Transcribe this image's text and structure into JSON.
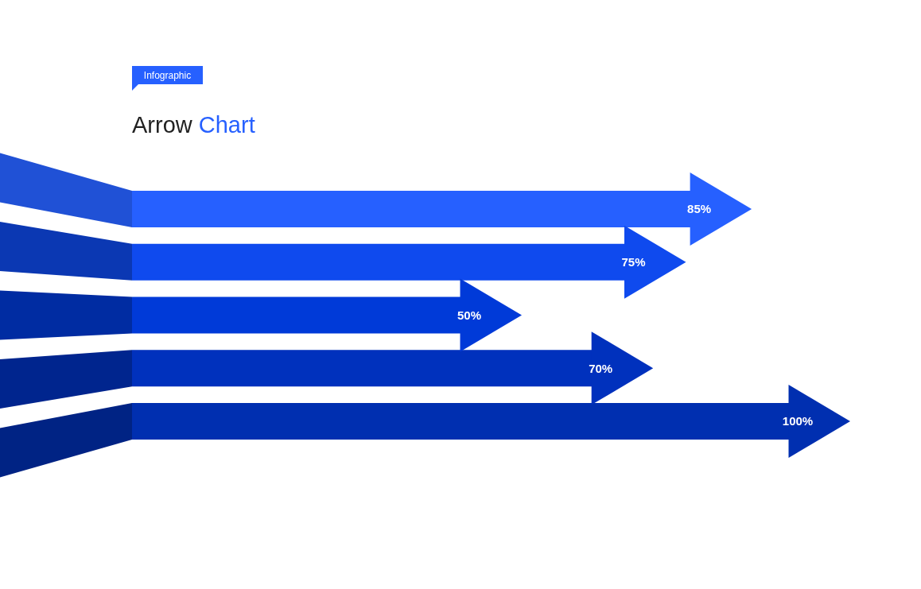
{
  "chart_data": {
    "type": "bar",
    "orientation": "horizontal",
    "title": "Arrow Chart",
    "subtitle": "Infographic",
    "categories": [
      null,
      null,
      null,
      null,
      null
    ],
    "values": [
      85,
      75,
      50,
      70,
      100
    ],
    "colors": [
      "#2660ff",
      "#0f4aee",
      "#003ad8",
      "#0031bd",
      "#002fb0"
    ],
    "value_labels": [
      "85%",
      "75%",
      "50%",
      "70%",
      "100%"
    ]
  }
}
